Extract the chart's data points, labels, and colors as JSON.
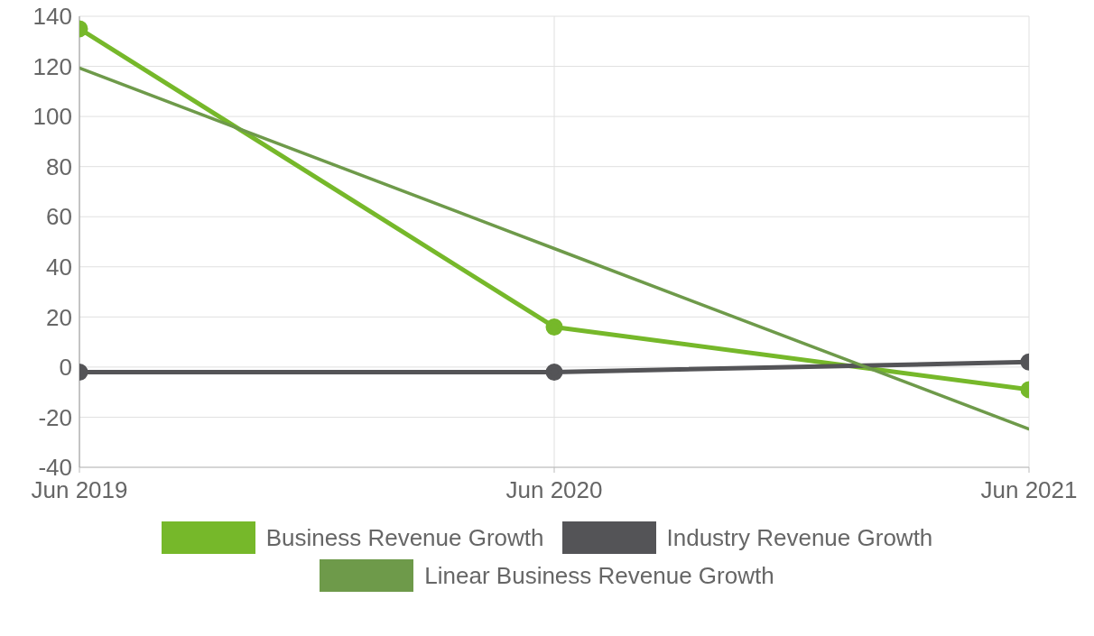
{
  "chart_data": {
    "type": "line",
    "categories": [
      "Jun 2019",
      "Jun 2020",
      "Jun 2021"
    ],
    "series": [
      {
        "name": "Business Revenue Growth",
        "color": "#76b82a",
        "values": [
          135,
          16,
          -9
        ],
        "marker": "circle"
      },
      {
        "name": "Industry Revenue Growth",
        "color": "#545457",
        "values": [
          -2,
          -2,
          2
        ],
        "marker": "circle"
      },
      {
        "name": "Linear Business Revenue Growth",
        "color": "#6e9a4a",
        "values": [
          119.3,
          47.3,
          -24.7
        ],
        "marker": "none"
      }
    ],
    "ylim": [
      -40,
      140
    ],
    "yticks": [
      -40,
      -20,
      0,
      20,
      40,
      60,
      80,
      100,
      120,
      140
    ],
    "grid": true,
    "legend": "bottom",
    "line_style": "solid"
  }
}
